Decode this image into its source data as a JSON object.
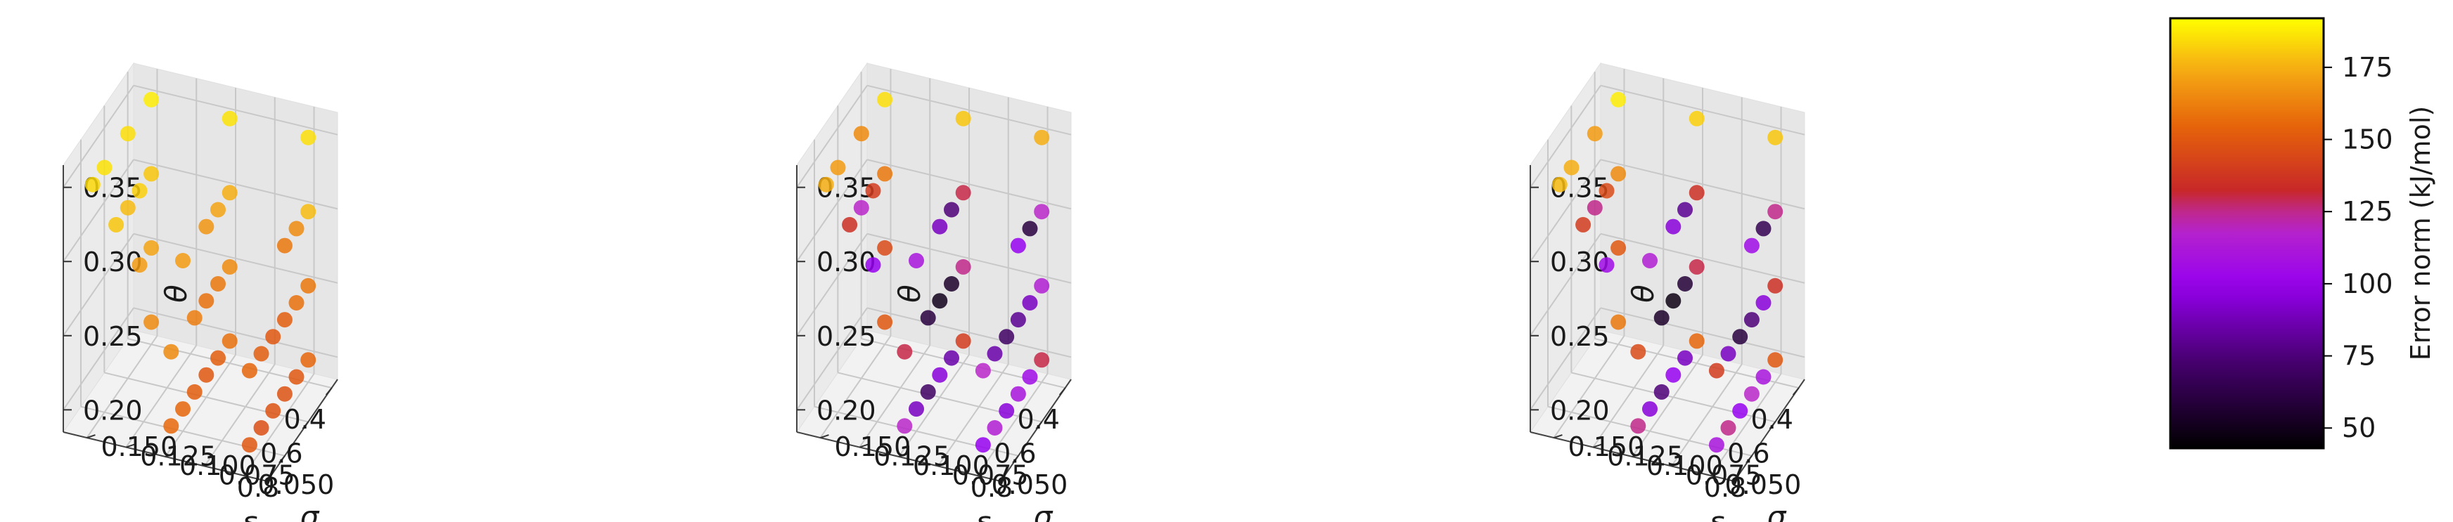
{
  "chart_data": {
    "type": "scatter",
    "plot_kind": "3d-scatter",
    "panels": [
      {
        "xlabel": "δ",
        "ylabel": "σ",
        "zlabel": "θ",
        "xticks": [
          "0.4",
          "0.6",
          "0.8"
        ],
        "yticks": [
          "0.050",
          "0.075",
          "0.100",
          "0.125",
          "0.150"
        ],
        "zticks": [
          "0.20",
          "0.25",
          "0.30",
          "0.35"
        ],
        "xlim": [
          0.35,
          0.95
        ],
        "ylim": [
          0.035,
          0.165
        ],
        "zlim": [
          0.185,
          0.365
        ],
        "points": [
          [
            0.4,
            0.05,
            0.2,
            155
          ],
          [
            0.4,
            0.05,
            0.25,
            160
          ],
          [
            0.4,
            0.05,
            0.3,
            178
          ],
          [
            0.4,
            0.05,
            0.35,
            185
          ],
          [
            0.5,
            0.05,
            0.2,
            150
          ],
          [
            0.5,
            0.05,
            0.25,
            158
          ],
          [
            0.5,
            0.05,
            0.3,
            165
          ],
          [
            0.6,
            0.05,
            0.2,
            148
          ],
          [
            0.6,
            0.05,
            0.25,
            152
          ],
          [
            0.6,
            0.05,
            0.3,
            160
          ],
          [
            0.7,
            0.05,
            0.2,
            148
          ],
          [
            0.7,
            0.05,
            0.25,
            150
          ],
          [
            0.8,
            0.05,
            0.2,
            147
          ],
          [
            0.8,
            0.05,
            0.25,
            152
          ],
          [
            0.9,
            0.05,
            0.2,
            150
          ],
          [
            0.9,
            0.05,
            0.25,
            155
          ],
          [
            0.4,
            0.1,
            0.2,
            158
          ],
          [
            0.4,
            0.1,
            0.25,
            165
          ],
          [
            0.4,
            0.1,
            0.3,
            175
          ],
          [
            0.4,
            0.1,
            0.35,
            186
          ],
          [
            0.5,
            0.1,
            0.2,
            152
          ],
          [
            0.5,
            0.1,
            0.25,
            160
          ],
          [
            0.5,
            0.1,
            0.3,
            172
          ],
          [
            0.6,
            0.1,
            0.2,
            150
          ],
          [
            0.6,
            0.1,
            0.25,
            158
          ],
          [
            0.6,
            0.1,
            0.3,
            168
          ],
          [
            0.7,
            0.1,
            0.2,
            152
          ],
          [
            0.7,
            0.1,
            0.25,
            162
          ],
          [
            0.8,
            0.1,
            0.2,
            155
          ],
          [
            0.8,
            0.1,
            0.3,
            170
          ],
          [
            0.9,
            0.1,
            0.2,
            156
          ],
          [
            0.9,
            0.1,
            0.25,
            165
          ],
          [
            0.4,
            0.15,
            0.2,
            165
          ],
          [
            0.4,
            0.15,
            0.25,
            172
          ],
          [
            0.4,
            0.15,
            0.3,
            180
          ],
          [
            0.4,
            0.15,
            0.35,
            188
          ],
          [
            0.5,
            0.15,
            0.25,
            170
          ],
          [
            0.5,
            0.15,
            0.3,
            182
          ],
          [
            0.6,
            0.15,
            0.3,
            178
          ],
          [
            0.6,
            0.15,
            0.35,
            185
          ],
          [
            0.7,
            0.15,
            0.3,
            180
          ],
          [
            0.8,
            0.15,
            0.35,
            186
          ],
          [
            0.9,
            0.15,
            0.35,
            184
          ]
        ]
      },
      {
        "xlabel": "δ",
        "ylabel": "σ",
        "zlabel": "θ",
        "xticks": [
          "0.4",
          "0.6",
          "0.8"
        ],
        "yticks": [
          "0.050",
          "0.075",
          "0.100",
          "0.125",
          "0.150"
        ],
        "zticks": [
          "0.20",
          "0.25",
          "0.30",
          "0.35"
        ],
        "xlim": [
          0.35,
          0.95
        ],
        "ylim": [
          0.035,
          0.165
        ],
        "zlim": [
          0.185,
          0.365
        ],
        "points": [
          [
            0.4,
            0.05,
            0.2,
            130
          ],
          [
            0.4,
            0.05,
            0.25,
            115
          ],
          [
            0.4,
            0.05,
            0.3,
            120
          ],
          [
            0.4,
            0.05,
            0.35,
            175
          ],
          [
            0.5,
            0.05,
            0.2,
            105
          ],
          [
            0.5,
            0.05,
            0.25,
            90
          ],
          [
            0.5,
            0.05,
            0.3,
            60
          ],
          [
            0.6,
            0.05,
            0.2,
            110
          ],
          [
            0.6,
            0.05,
            0.25,
            80
          ],
          [
            0.6,
            0.05,
            0.3,
            100
          ],
          [
            0.7,
            0.05,
            0.2,
            95
          ],
          [
            0.7,
            0.05,
            0.25,
            70
          ],
          [
            0.8,
            0.05,
            0.2,
            115
          ],
          [
            0.8,
            0.05,
            0.25,
            85
          ],
          [
            0.9,
            0.05,
            0.2,
            100
          ],
          [
            0.9,
            0.05,
            0.25,
            120
          ],
          [
            0.4,
            0.1,
            0.2,
            140
          ],
          [
            0.4,
            0.1,
            0.25,
            125
          ],
          [
            0.4,
            0.1,
            0.3,
            130
          ],
          [
            0.4,
            0.1,
            0.35,
            180
          ],
          [
            0.5,
            0.1,
            0.2,
            85
          ],
          [
            0.5,
            0.1,
            0.25,
            55
          ],
          [
            0.5,
            0.1,
            0.3,
            75
          ],
          [
            0.6,
            0.1,
            0.2,
            95
          ],
          [
            0.6,
            0.1,
            0.25,
            50
          ],
          [
            0.6,
            0.1,
            0.3,
            90
          ],
          [
            0.7,
            0.1,
            0.2,
            70
          ],
          [
            0.7,
            0.1,
            0.25,
            60
          ],
          [
            0.8,
            0.1,
            0.2,
            90
          ],
          [
            0.8,
            0.1,
            0.3,
            110
          ],
          [
            0.9,
            0.1,
            0.2,
            120
          ],
          [
            0.9,
            0.1,
            0.25,
            130
          ],
          [
            0.4,
            0.15,
            0.2,
            150
          ],
          [
            0.4,
            0.15,
            0.25,
            145
          ],
          [
            0.4,
            0.15,
            0.3,
            160
          ],
          [
            0.4,
            0.15,
            0.35,
            185
          ],
          [
            0.5,
            0.15,
            0.25,
            100
          ],
          [
            0.5,
            0.15,
            0.3,
            140
          ],
          [
            0.6,
            0.15,
            0.3,
            120
          ],
          [
            0.6,
            0.15,
            0.35,
            165
          ],
          [
            0.7,
            0.15,
            0.3,
            135
          ],
          [
            0.8,
            0.15,
            0.35,
            170
          ],
          [
            0.9,
            0.15,
            0.35,
            175
          ]
        ]
      },
      {
        "xlabel": "δ",
        "ylabel": "σ",
        "zlabel": "θ",
        "xticks": [
          "0.4",
          "0.6",
          "0.8"
        ],
        "yticks": [
          "0.050",
          "0.075",
          "0.100",
          "0.125",
          "0.150"
        ],
        "zticks": [
          "0.20",
          "0.25",
          "0.30",
          "0.35"
        ],
        "xlim": [
          0.35,
          0.95
        ],
        "ylim": [
          0.035,
          0.165
        ],
        "zlim": [
          0.185,
          0.365
        ],
        "points": [
          [
            0.4,
            0.05,
            0.2,
            150
          ],
          [
            0.4,
            0.05,
            0.25,
            135
          ],
          [
            0.4,
            0.05,
            0.3,
            125
          ],
          [
            0.4,
            0.05,
            0.35,
            180
          ],
          [
            0.5,
            0.05,
            0.2,
            110
          ],
          [
            0.5,
            0.05,
            0.25,
            95
          ],
          [
            0.5,
            0.05,
            0.3,
            65
          ],
          [
            0.6,
            0.05,
            0.2,
            120
          ],
          [
            0.6,
            0.05,
            0.25,
            75
          ],
          [
            0.6,
            0.05,
            0.3,
            105
          ],
          [
            0.7,
            0.05,
            0.2,
            100
          ],
          [
            0.7,
            0.05,
            0.25,
            60
          ],
          [
            0.8,
            0.05,
            0.2,
            125
          ],
          [
            0.8,
            0.05,
            0.25,
            90
          ],
          [
            0.9,
            0.05,
            0.2,
            110
          ],
          [
            0.9,
            0.05,
            0.25,
            140
          ],
          [
            0.4,
            0.1,
            0.2,
            155
          ],
          [
            0.4,
            0.1,
            0.25,
            130
          ],
          [
            0.4,
            0.1,
            0.3,
            135
          ],
          [
            0.4,
            0.1,
            0.35,
            182
          ],
          [
            0.5,
            0.1,
            0.2,
            90
          ],
          [
            0.5,
            0.1,
            0.25,
            58
          ],
          [
            0.5,
            0.1,
            0.3,
            80
          ],
          [
            0.6,
            0.1,
            0.2,
            100
          ],
          [
            0.6,
            0.1,
            0.25,
            48
          ],
          [
            0.6,
            0.1,
            0.3,
            95
          ],
          [
            0.7,
            0.1,
            0.2,
            75
          ],
          [
            0.7,
            0.1,
            0.25,
            55
          ],
          [
            0.8,
            0.1,
            0.2,
            95
          ],
          [
            0.8,
            0.1,
            0.3,
            115
          ],
          [
            0.9,
            0.1,
            0.2,
            125
          ],
          [
            0.9,
            0.1,
            0.25,
            145
          ],
          [
            0.4,
            0.15,
            0.2,
            160
          ],
          [
            0.4,
            0.15,
            0.25,
            150
          ],
          [
            0.4,
            0.15,
            0.3,
            165
          ],
          [
            0.4,
            0.15,
            0.35,
            188
          ],
          [
            0.5,
            0.15,
            0.25,
            105
          ],
          [
            0.5,
            0.15,
            0.3,
            145
          ],
          [
            0.6,
            0.15,
            0.3,
            125
          ],
          [
            0.6,
            0.15,
            0.35,
            170
          ],
          [
            0.7,
            0.15,
            0.3,
            140
          ],
          [
            0.8,
            0.15,
            0.35,
            175
          ],
          [
            0.9,
            0.15,
            0.35,
            178
          ]
        ]
      }
    ],
    "colorbar": {
      "label": "Error norm (kJ/mol)",
      "colormap": "gnuplot",
      "range": [
        43,
        192
      ],
      "ticks": [
        "50",
        "75",
        "100",
        "125",
        "150",
        "175"
      ],
      "tick_values": [
        50,
        75,
        100,
        125,
        150,
        175
      ]
    }
  }
}
